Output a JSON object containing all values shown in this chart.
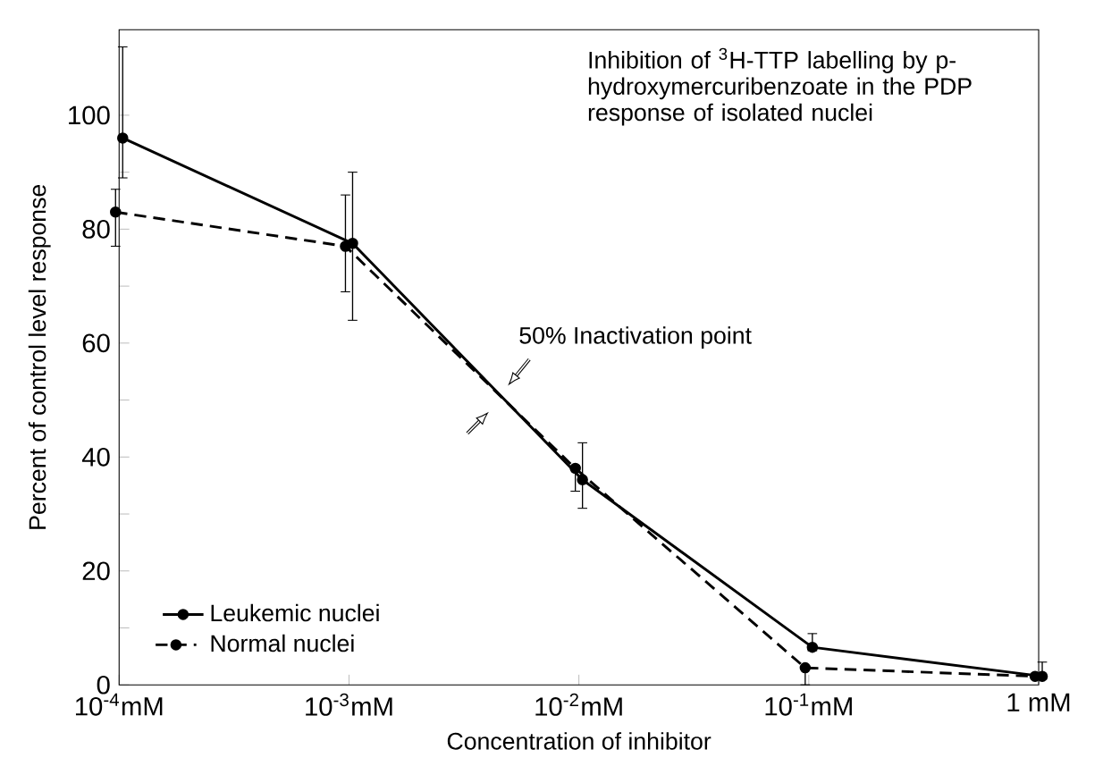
{
  "chart_data": {
    "type": "line",
    "annotations": [
      "Inhibition of $^{3}$H-TTP labelling by p-hydroxymercuribenzoate in the PDP response of isolated nuclei",
      "50% Inactivation point"
    ],
    "xlabel": "Concentration of inhibitor",
    "ylabel": "Percent of control level response",
    "categories": [
      "10$^{-4}$mM",
      "10$^{-3}$mM",
      "10$^{-2}$mM",
      "10$^{-1}$mM",
      "1 mM"
    ],
    "series": [
      {
        "name": "Leukemic nuclei",
        "color": "#000000",
        "line_style": "solid",
        "values": [
          96,
          77.5,
          36,
          6.6,
          1.5
        ],
        "errors": [
          [
            89,
            112
          ],
          [
            64,
            90
          ],
          [
            31,
            42.5
          ],
          [
            6,
            9
          ],
          [
            1,
            4
          ]
        ]
      },
      {
        "name": "Normal nuclei",
        "color": "#000000",
        "line_style": "dashed",
        "values": [
          83,
          77,
          38,
          3,
          1.5
        ],
        "errors": [
          [
            77,
            87
          ],
          [
            69,
            86
          ],
          [
            34,
            38.5
          ],
          [
            0,
            3
          ],
          null
        ]
      }
    ],
    "marker": "circle",
    "ylim": [
      0,
      115
    ],
    "yticks": [
      0,
      {
        "value": 10,
        "label": null
      },
      20,
      {
        "value": 30,
        "label": null
      },
      40,
      {
        "value": 50,
        "label": null
      },
      60,
      {
        "value": 70,
        "label": null
      },
      80,
      {
        "value": 90,
        "label": null
      },
      100
    ],
    "legend": "bottom left"
  }
}
